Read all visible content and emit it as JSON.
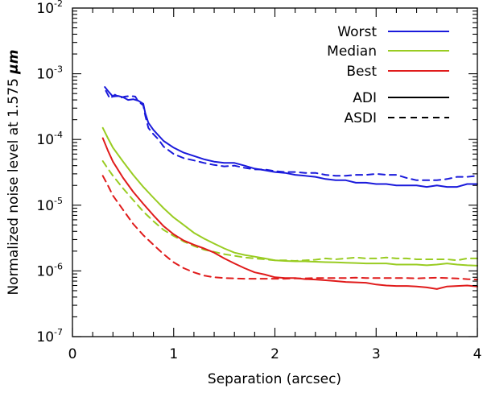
{
  "chart_data": {
    "type": "line",
    "title": "",
    "xlabel": "Separation (arcsec)",
    "ylabel_prefix": "Normalized noise level at 1.575 ",
    "ylabel_unit": "μm",
    "xlim": [
      0,
      4
    ],
    "ylim": [
      1e-07,
      0.01
    ],
    "yscale": "log",
    "grid": false,
    "legend_placement": "top-right",
    "x_ticks": [
      "0",
      "1",
      "2",
      "3",
      "4"
    ],
    "y_ticks": [
      {
        "base": "10",
        "exp": "-7"
      },
      {
        "base": "10",
        "exp": "-6"
      },
      {
        "base": "10",
        "exp": "-5"
      },
      {
        "base": "10",
        "exp": "-4"
      },
      {
        "base": "10",
        "exp": "-3"
      },
      {
        "base": "10",
        "exp": "-2"
      }
    ],
    "legend": {
      "colors": [
        {
          "label": "Worst",
          "color": "#1a1adb"
        },
        {
          "label": "Median",
          "color": "#99cc22"
        },
        {
          "label": "Best",
          "color": "#e01b1b"
        }
      ],
      "styles": [
        {
          "label": "ADI",
          "dash": "solid"
        },
        {
          "label": "ASDI",
          "dash": "dashed"
        }
      ]
    },
    "series": [
      {
        "name": "Worst ADI",
        "color": "#1a1adb",
        "dash": "solid",
        "x": [
          0.32,
          0.35,
          0.4,
          0.45,
          0.5,
          0.55,
          0.6,
          0.65,
          0.7,
          0.72,
          0.75,
          0.8,
          0.85,
          0.9,
          1.0,
          1.1,
          1.2,
          1.3,
          1.4,
          1.5,
          1.6,
          1.7,
          1.8,
          1.9,
          2.0,
          2.1,
          2.2,
          2.3,
          2.4,
          2.5,
          2.6,
          2.7,
          2.8,
          2.9,
          3.0,
          3.1,
          3.2,
          3.3,
          3.4,
          3.5,
          3.6,
          3.7,
          3.8,
          3.9,
          4.0
        ],
        "y": [
          0.00063,
          0.00055,
          0.00045,
          0.00046,
          0.00044,
          0.0004,
          0.00041,
          0.00039,
          0.00035,
          0.00025,
          0.00018,
          0.00014,
          0.000115,
          9.5e-05,
          7.5e-05,
          6.3e-05,
          5.6e-05,
          5e-05,
          4.6e-05,
          4.4e-05,
          4.4e-05,
          4e-05,
          3.6e-05,
          3.4e-05,
          3.2e-05,
          3.1e-05,
          2.9e-05,
          2.8e-05,
          2.7e-05,
          2.5e-05,
          2.4e-05,
          2.4e-05,
          2.2e-05,
          2.2e-05,
          2.1e-05,
          2.1e-05,
          2e-05,
          2e-05,
          2e-05,
          1.9e-05,
          2e-05,
          1.9e-05,
          1.9e-05,
          2.1e-05,
          2.1e-05
        ]
      },
      {
        "name": "Worst ASDI",
        "color": "#1a1adb",
        "dash": "dashed",
        "x": [
          0.33,
          0.37,
          0.42,
          0.47,
          0.52,
          0.57,
          0.62,
          0.65,
          0.7,
          0.72,
          0.75,
          0.8,
          0.85,
          0.9,
          1.0,
          1.1,
          1.2,
          1.3,
          1.4,
          1.5,
          1.6,
          1.7,
          1.8,
          1.9,
          2.0,
          2.1,
          2.2,
          2.3,
          2.4,
          2.5,
          2.6,
          2.7,
          2.8,
          2.9,
          3.0,
          3.1,
          3.2,
          3.3,
          3.4,
          3.5,
          3.6,
          3.7,
          3.8,
          3.9,
          4.0
        ],
        "y": [
          0.00055,
          0.00042,
          0.00048,
          0.00043,
          0.00045,
          0.00046,
          0.00045,
          0.00038,
          0.00033,
          0.00023,
          0.00015,
          0.00012,
          0.0001,
          7.8e-05,
          6e-05,
          5.2e-05,
          4.8e-05,
          4.4e-05,
          4.1e-05,
          3.9e-05,
          4e-05,
          3.7e-05,
          3.5e-05,
          3.5e-05,
          3.3e-05,
          3.2e-05,
          3.2e-05,
          3.1e-05,
          3.1e-05,
          2.9e-05,
          2.8e-05,
          2.8e-05,
          2.9e-05,
          2.9e-05,
          3e-05,
          2.9e-05,
          2.9e-05,
          2.6e-05,
          2.4e-05,
          2.4e-05,
          2.4e-05,
          2.5e-05,
          2.7e-05,
          2.7e-05,
          2.8e-05
        ]
      },
      {
        "name": "Median ADI",
        "color": "#99cc22",
        "dash": "solid",
        "x": [
          0.3,
          0.35,
          0.4,
          0.5,
          0.6,
          0.7,
          0.8,
          0.9,
          1.0,
          1.1,
          1.2,
          1.3,
          1.4,
          1.5,
          1.6,
          1.7,
          1.8,
          1.9,
          2.0,
          2.1,
          2.2,
          2.3,
          2.4,
          2.5,
          2.6,
          2.7,
          2.8,
          2.9,
          3.0,
          3.1,
          3.2,
          3.3,
          3.4,
          3.5,
          3.6,
          3.7,
          3.8,
          3.9,
          4.0
        ],
        "y": [
          0.00015,
          0.000105,
          7.5e-05,
          4.6e-05,
          2.9e-05,
          1.9e-05,
          1.3e-05,
          9e-06,
          6.5e-06,
          5e-06,
          3.8e-06,
          3.1e-06,
          2.6e-06,
          2.2e-06,
          1.9e-06,
          1.75e-06,
          1.65e-06,
          1.55e-06,
          1.45e-06,
          1.42e-06,
          1.4e-06,
          1.4e-06,
          1.38e-06,
          1.36e-06,
          1.35e-06,
          1.33e-06,
          1.32e-06,
          1.3e-06,
          1.3e-06,
          1.3e-06,
          1.25e-06,
          1.25e-06,
          1.25e-06,
          1.22e-06,
          1.25e-06,
          1.3e-06,
          1.25e-06,
          1.22e-06,
          1.2e-06
        ]
      },
      {
        "name": "Median ASDI",
        "color": "#99cc22",
        "dash": "dashed",
        "x": [
          0.3,
          0.35,
          0.4,
          0.5,
          0.6,
          0.7,
          0.8,
          0.9,
          1.0,
          1.1,
          1.2,
          1.3,
          1.4,
          1.5,
          1.6,
          1.7,
          1.8,
          1.9,
          2.0,
          2.1,
          2.2,
          2.3,
          2.4,
          2.5,
          2.6,
          2.7,
          2.8,
          2.9,
          3.0,
          3.1,
          3.2,
          3.3,
          3.4,
          3.5,
          3.6,
          3.7,
          3.8,
          3.9,
          4.0
        ],
        "y": [
          4.7e-05,
          3.6e-05,
          2.8e-05,
          1.8e-05,
          1.2e-05,
          8e-06,
          5.7e-06,
          4.2e-06,
          3.4e-06,
          2.8e-06,
          2.4e-06,
          2.1e-06,
          1.95e-06,
          1.8e-06,
          1.7e-06,
          1.6e-06,
          1.55e-06,
          1.5e-06,
          1.45e-06,
          1.45e-06,
          1.42e-06,
          1.45e-06,
          1.48e-06,
          1.55e-06,
          1.5e-06,
          1.55e-06,
          1.6e-06,
          1.55e-06,
          1.55e-06,
          1.6e-06,
          1.55e-06,
          1.55e-06,
          1.5e-06,
          1.5e-06,
          1.5e-06,
          1.5e-06,
          1.45e-06,
          1.55e-06,
          1.55e-06
        ]
      },
      {
        "name": "Best ADI",
        "color": "#e01b1b",
        "dash": "solid",
        "x": [
          0.3,
          0.35,
          0.4,
          0.5,
          0.6,
          0.7,
          0.8,
          0.9,
          1.0,
          1.1,
          1.2,
          1.3,
          1.4,
          1.5,
          1.6,
          1.7,
          1.8,
          1.9,
          2.0,
          2.1,
          2.2,
          2.3,
          2.4,
          2.5,
          2.6,
          2.7,
          2.8,
          2.9,
          3.0,
          3.1,
          3.2,
          3.3,
          3.4,
          3.5,
          3.6,
          3.7,
          3.8,
          3.9,
          4.0
        ],
        "y": [
          0.000105,
          6.8e-05,
          4.6e-05,
          2.6e-05,
          1.6e-05,
          1.05e-05,
          7e-06,
          4.8e-06,
          3.6e-06,
          2.9e-06,
          2.5e-06,
          2.2e-06,
          1.9e-06,
          1.55e-06,
          1.3e-06,
          1.1e-06,
          9.5e-07,
          8.8e-07,
          8e-07,
          7.8e-07,
          7.8e-07,
          7.5e-07,
          7.4e-07,
          7.2e-07,
          7e-07,
          6.8e-07,
          6.7e-07,
          6.6e-07,
          6.2e-07,
          6e-07,
          5.9e-07,
          5.9e-07,
          5.8e-07,
          5.6e-07,
          5.3e-07,
          5.8e-07,
          5.9e-07,
          6e-07,
          5.8e-07
        ]
      },
      {
        "name": "Best ASDI",
        "color": "#e01b1b",
        "dash": "dashed",
        "x": [
          0.3,
          0.35,
          0.4,
          0.5,
          0.6,
          0.7,
          0.8,
          0.9,
          1.0,
          1.1,
          1.2,
          1.3,
          1.4,
          1.5,
          1.6,
          1.7,
          1.8,
          1.9,
          2.0,
          2.1,
          2.2,
          2.3,
          2.4,
          2.5,
          2.6,
          2.7,
          2.8,
          2.9,
          3.0,
          3.1,
          3.2,
          3.3,
          3.4,
          3.5,
          3.6,
          3.7,
          3.8,
          3.9,
          4.0
        ],
        "y": [
          2.8e-05,
          2e-05,
          1.4e-05,
          8.5e-06,
          5.2e-06,
          3.5e-06,
          2.5e-06,
          1.8e-06,
          1.35e-06,
          1.1e-06,
          9.5e-07,
          8.5e-07,
          8e-07,
          7.8e-07,
          7.7e-07,
          7.6e-07,
          7.6e-07,
          7.6e-07,
          7.6e-07,
          7.6e-07,
          7.7e-07,
          7.7e-07,
          7.8e-07,
          7.8e-07,
          7.8e-07,
          7.8e-07,
          7.9e-07,
          7.8e-07,
          7.8e-07,
          7.8e-07,
          7.8e-07,
          7.8e-07,
          7.7e-07,
          7.8e-07,
          7.9e-07,
          7.8e-07,
          7.7e-07,
          7.5e-07,
          7.4e-07
        ]
      }
    ]
  }
}
